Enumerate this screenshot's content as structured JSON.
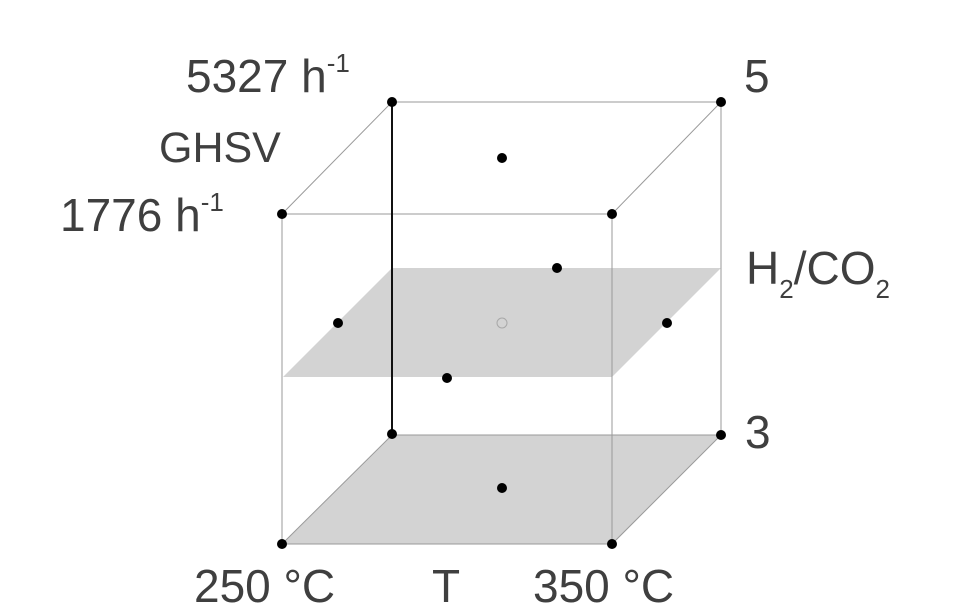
{
  "labels": {
    "ghsv_high": "5327 h",
    "ghsv_high_sup": "-1",
    "ghsv_title": "GHSV",
    "ghsv_low": "1776 h",
    "ghsv_low_sup": "-1",
    "ratio_high": "5",
    "ratio_low": "3",
    "ratio_h": "H",
    "ratio_h_sub": "2",
    "ratio_slash_co": "/CO",
    "ratio_co_sub": "2",
    "temp_low": "250 °C",
    "temp_title": "T",
    "temp_high": "350 °C"
  },
  "colors": {
    "plane_fill": "#d3d3d3",
    "edge": "#9a9a9a",
    "bold_edge": "#111111",
    "point": "#000000",
    "text": "#3f3f3f"
  }
}
